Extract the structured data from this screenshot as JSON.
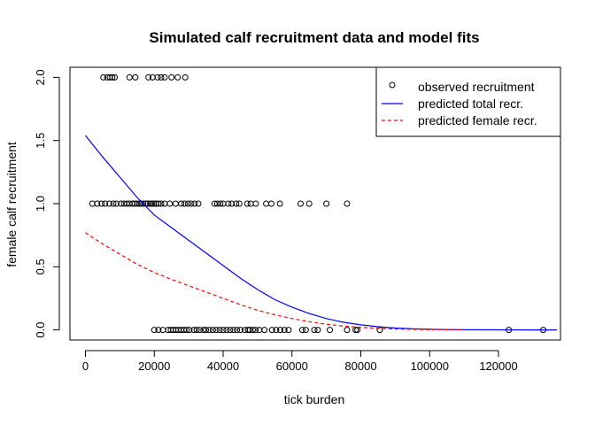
{
  "chart_data": {
    "type": "scatter",
    "title": "Simulated calf recruitment data and model fits",
    "xlabel": "tick burden",
    "ylabel": "female calf recruitment",
    "xlim": [
      -4500,
      138000
    ],
    "ylim": [
      -0.08,
      2.08
    ],
    "x_ticks": [
      0,
      20000,
      40000,
      60000,
      80000,
      100000,
      120000
    ],
    "y_ticks": [
      0.0,
      0.5,
      1.0,
      1.5,
      2.0
    ],
    "x_tick_labels": [
      "0",
      "20000",
      "40000",
      "60000",
      "80000",
      "100000",
      "120000"
    ],
    "y_tick_labels": [
      "0.0",
      "0.5",
      "1.0",
      "1.5",
      "2.0"
    ],
    "grid": false,
    "legend_position": "top-right",
    "legend": [
      {
        "label": "observed recruitment",
        "symbol": "circle",
        "color": "#000000"
      },
      {
        "label": "predicted total recr.",
        "symbol": "line",
        "color": "#0000ff"
      },
      {
        "label": "predicted female recr.",
        "symbol": "dashed-line",
        "color": "#ff0000"
      }
    ],
    "observed": {
      "y2": [
        5200,
        6300,
        7100,
        7800,
        8500,
        12800,
        14500,
        18300,
        19500,
        21000,
        22000,
        23000,
        25000,
        26800,
        29000
      ],
      "y1": [
        2000,
        3400,
        4700,
        5700,
        7000,
        8100,
        9000,
        10300,
        11200,
        12000,
        12800,
        13700,
        14300,
        15000,
        15700,
        16200,
        16800,
        17500,
        18100,
        18800,
        19300,
        19900,
        20500,
        21200,
        22000,
        23000,
        24500,
        26200,
        27800,
        28800,
        29800,
        30700,
        31700,
        32800,
        37500,
        38300,
        39200,
        40000,
        41500,
        42500,
        43800,
        44700,
        47000,
        48000,
        49500,
        52500,
        54000,
        56500,
        62500,
        65000,
        70000,
        76000
      ],
      "y0": [
        20000,
        21200,
        22500,
        24000,
        24800,
        25500,
        26200,
        27000,
        27800,
        28600,
        29400,
        30200,
        31500,
        32300,
        33200,
        34300,
        35000,
        36000,
        37000,
        38000,
        39000,
        40000,
        41000,
        42000,
        43000,
        44000,
        45000,
        46300,
        47200,
        47700,
        48600,
        49400,
        50500,
        52000,
        54200,
        55400,
        56600,
        57800,
        59000,
        63000,
        64000,
        66500,
        67500,
        71000,
        76000,
        78500,
        79000,
        85500,
        123000,
        133000
      ]
    },
    "series": [
      {
        "name": "predicted total recr.",
        "color": "#0000ff",
        "style": "solid",
        "x": [
          0,
          5000,
          10000,
          15000,
          20000,
          25000,
          30000,
          35000,
          40000,
          45000,
          50000,
          55000,
          60000,
          65000,
          70000,
          75000,
          80000,
          85000,
          90000,
          95000,
          100000,
          105000,
          110000,
          120000,
          130000,
          137000
        ],
        "y": [
          1.54,
          1.37,
          1.21,
          1.05,
          0.91,
          0.81,
          0.71,
          0.61,
          0.51,
          0.41,
          0.32,
          0.24,
          0.18,
          0.13,
          0.09,
          0.06,
          0.04,
          0.025,
          0.015,
          0.009,
          0.005,
          0.003,
          0.0015,
          0.0005,
          0.0002,
          0.0001
        ]
      },
      {
        "name": "predicted female recr.",
        "color": "#ff0000",
        "style": "dashed",
        "x": [
          0,
          5000,
          10000,
          15000,
          20000,
          25000,
          30000,
          35000,
          40000,
          45000,
          50000,
          55000,
          60000,
          65000,
          70000,
          75000,
          80000,
          85000,
          90000,
          95000,
          100000,
          105000,
          110000
        ],
        "y": [
          0.77,
          0.68,
          0.6,
          0.52,
          0.455,
          0.4,
          0.35,
          0.3,
          0.25,
          0.2,
          0.155,
          0.12,
          0.09,
          0.065,
          0.045,
          0.03,
          0.02,
          0.012,
          0.007,
          0.004,
          0.002,
          0.001,
          0.0005
        ]
      }
    ]
  }
}
